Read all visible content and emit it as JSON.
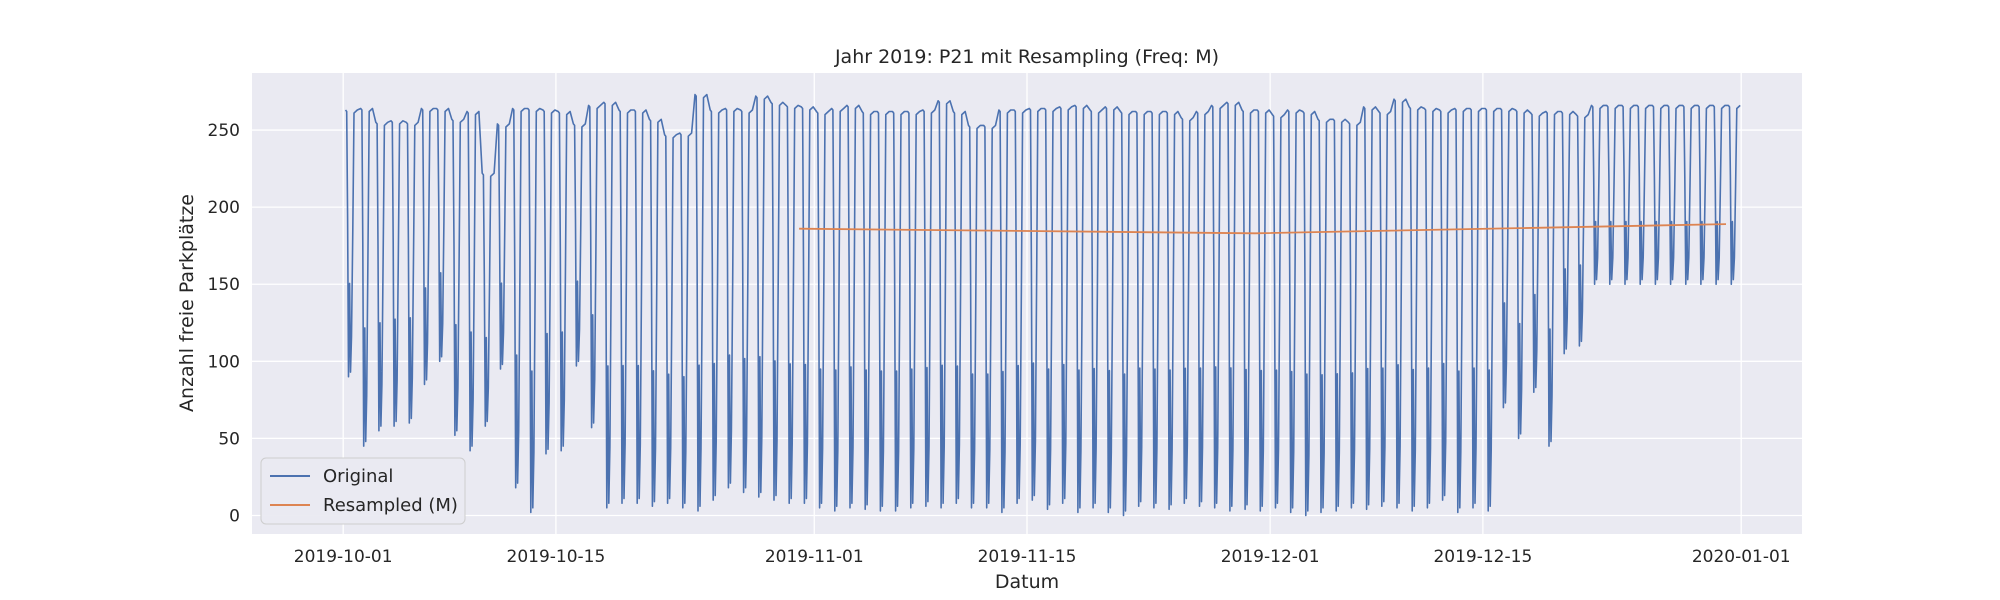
{
  "chart_data": {
    "type": "line",
    "title": "Jahr 2019: P21 mit Resampling (Freq: M)",
    "xlabel": "Datum",
    "ylabel": "Anzahl freie Parkplätze",
    "xlim": [
      "2019-09-25",
      "2020-01-05"
    ],
    "ylim": [
      -12,
      287
    ],
    "x_ticks": [
      "2019-10-01",
      "2019-10-15",
      "2019-11-01",
      "2019-11-15",
      "2019-12-01",
      "2019-12-15",
      "2020-01-01"
    ],
    "y_ticks": [
      0,
      50,
      100,
      150,
      200,
      250
    ],
    "grid": true,
    "legend_position": "lower-left",
    "series": [
      {
        "name": "Original",
        "color": "#4c72b0",
        "daily_high": [
          263,
          264,
          255,
          256,
          255,
          264,
          264,
          257,
          262,
          222,
          254,
          264,
          264,
          263,
          262,
          254,
          266,
          268,
          263,
          263,
          257,
          247,
          248,
          273,
          263,
          264,
          263,
          272,
          268,
          266,
          265,
          262,
          264,
          266,
          262,
          262,
          262,
          262,
          263,
          269,
          262,
          253,
          253,
          263,
          263,
          264,
          264,
          265,
          266,
          263,
          265,
          262,
          262,
          262,
          262,
          258,
          262,
          266,
          268,
          263,
          263,
          260,
          263,
          262,
          257,
          257,
          255,
          265,
          262,
          270,
          265,
          264,
          263,
          264,
          264,
          264,
          264,
          263,
          261,
          262,
          262,
          260,
          266,
          266,
          266,
          266,
          266,
          266,
          266,
          266,
          266,
          266
        ],
        "daily_low": [
          90,
          45,
          55,
          58,
          60,
          85,
          100,
          52,
          42,
          58,
          95,
          18,
          2,
          40,
          42,
          97,
          57,
          5,
          8,
          8,
          6,
          8,
          5,
          3,
          10,
          18,
          15,
          12,
          10,
          8,
          8,
          5,
          3,
          5,
          4,
          3,
          3,
          5,
          6,
          5,
          8,
          5,
          5,
          2,
          8,
          10,
          4,
          8,
          2,
          5,
          2,
          0,
          6,
          5,
          4,
          8,
          6,
          5,
          3,
          4,
          3,
          5,
          2,
          0,
          2,
          3,
          5,
          4,
          6,
          5,
          3,
          5,
          10,
          2,
          5,
          3,
          70,
          50,
          80,
          45,
          105,
          110,
          150,
          150,
          150,
          150,
          150,
          150,
          150,
          150,
          150,
          150
        ]
      },
      {
        "name": "Resampled (M)",
        "color": "#dd8452",
        "x": [
          "2019-10-31",
          "2019-11-30",
          "2019-12-31"
        ],
        "values": [
          186,
          183,
          189
        ]
      }
    ]
  }
}
